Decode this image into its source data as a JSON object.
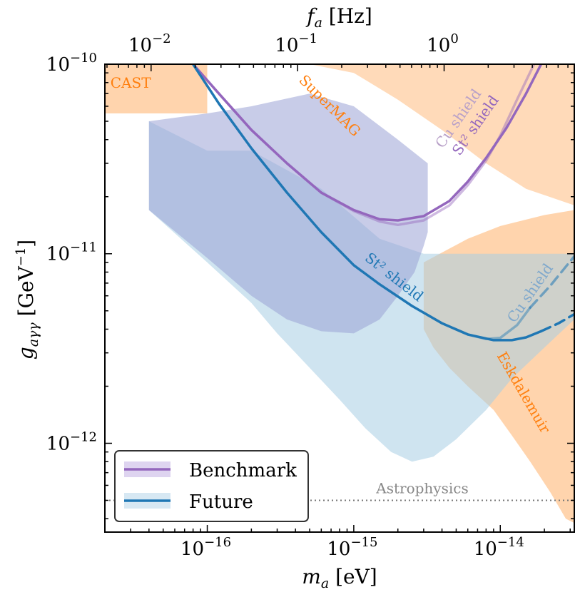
{
  "chart_data": {
    "type": "area",
    "xlabel": "m_a [eV]",
    "ylabel": "g_aγγ [GeV⁻¹]",
    "top_xlabel": "f_a [Hz]",
    "xscale": "log",
    "yscale": "log",
    "xlim": [
      2e-17,
      3.2e-14
    ],
    "ylim": [
      3.4e-13,
      1e-10
    ],
    "x_ticks": [
      {
        "value": 1e-16,
        "base": "10",
        "exp": "−16"
      },
      {
        "value": 1e-15,
        "base": "10",
        "exp": "−15"
      },
      {
        "value": 1e-14,
        "base": "10",
        "exp": "−14"
      }
    ],
    "top_ticks": [
      {
        "value_hz": 0.01,
        "base": "10",
        "exp": "−2"
      },
      {
        "value_hz": 0.1,
        "base": "10",
        "exp": "−1"
      },
      {
        "value_hz": 1,
        "base": "10",
        "exp": "0"
      }
    ],
    "y_ticks": [
      {
        "value": 1e-10,
        "base": "10",
        "exp": "−10"
      },
      {
        "value": 1e-11,
        "base": "10",
        "exp": "−11"
      },
      {
        "value": 1e-12,
        "base": "10",
        "exp": "−12"
      }
    ],
    "regions": [
      {
        "name": "CAST",
        "color": "#ffc28a",
        "opacity": 0.7,
        "points": [
          [
            2e-17,
            1e-10
          ],
          [
            2e-17,
            5.5e-11
          ],
          [
            3.2e-17,
            5.5e-11
          ],
          [
            1e-16,
            5.5e-11
          ],
          [
            1e-16,
            1e-10
          ]
        ]
      },
      {
        "name": "SuperMAG",
        "color": "#ffc28a",
        "opacity": 0.6,
        "points": [
          [
            4e-17,
            1e-10
          ],
          [
            3.2e-14,
            1e-10
          ],
          [
            3.2e-14,
            1.8e-11
          ],
          [
            1.5e-14,
            2.2e-11
          ],
          [
            8e-15,
            3e-11
          ],
          [
            4e-15,
            4.5e-11
          ],
          [
            2e-15,
            6.5e-11
          ],
          [
            1e-15,
            9e-11
          ],
          [
            5e-16,
            1e-10
          ]
        ]
      },
      {
        "name": "Eskdalemuir",
        "color": "#ffc28a",
        "opacity": 0.7,
        "points": [
          [
            3e-15,
            9e-12
          ],
          [
            6e-15,
            1.2e-11
          ],
          [
            1e-14,
            1.4e-11
          ],
          [
            2e-14,
            1.6e-11
          ],
          [
            3.2e-14,
            1.7e-11
          ],
          [
            3.2e-14,
            3.8e-13
          ],
          [
            2.8e-14,
            4e-13
          ],
          [
            2.2e-14,
            5.5e-13
          ],
          [
            1.6e-14,
            8e-13
          ],
          [
            1.2e-14,
            1.1e-12
          ],
          [
            9e-15,
            1.5e-12
          ],
          [
            6e-15,
            2e-12
          ],
          [
            4.5e-15,
            2.5e-12
          ],
          [
            3.5e-15,
            3.2e-12
          ],
          [
            3e-15,
            4e-12
          ]
        ]
      },
      {
        "name": "Future",
        "color": "#a8cde3",
        "opacity": 0.55,
        "points": [
          [
            4e-17,
            1.7e-11
          ],
          [
            1e-16,
            9e-12
          ],
          [
            2e-16,
            5.5e-12
          ],
          [
            3e-16,
            3.8e-12
          ],
          [
            5e-16,
            2.5e-12
          ],
          [
            8e-16,
            1.7e-12
          ],
          [
            1.2e-15,
            1.2e-12
          ],
          [
            1.8e-15,
            9e-13
          ],
          [
            2.5e-15,
            8e-13
          ],
          [
            3.5e-15,
            8.5e-13
          ],
          [
            5e-15,
            1.05e-12
          ],
          [
            8e-15,
            1.5e-12
          ],
          [
            1.2e-14,
            2.2e-12
          ],
          [
            2e-14,
            3.2e-12
          ],
          [
            3.2e-14,
            4.5e-12
          ],
          [
            3.2e-14,
            1e-11
          ],
          [
            3e-15,
            1e-11
          ],
          [
            1.5e-15,
            1.2e-11
          ],
          [
            6e-16,
            2.2e-11
          ],
          [
            2e-16,
            3.5e-11
          ],
          [
            1e-16,
            3.5e-11
          ],
          [
            4e-17,
            5e-11
          ]
        ]
      },
      {
        "name": "Benchmark",
        "color": "#9aa2d6",
        "opacity": 0.55,
        "points": [
          [
            4e-17,
            5e-11
          ],
          [
            4e-17,
            1.7e-11
          ],
          [
            1e-16,
            9.5e-12
          ],
          [
            2e-16,
            6e-12
          ],
          [
            3.5e-16,
            4.5e-12
          ],
          [
            6e-16,
            3.9e-12
          ],
          [
            1e-15,
            3.8e-12
          ],
          [
            1.5e-15,
            4.5e-12
          ],
          [
            2e-15,
            6e-12
          ],
          [
            2.6e-15,
            8e-12
          ],
          [
            3e-15,
            1.1e-11
          ],
          [
            3.2e-15,
            1.3e-11
          ],
          [
            3.2e-15,
            3e-11
          ],
          [
            2e-15,
            4e-11
          ],
          [
            1e-15,
            6e-11
          ],
          [
            5e-16,
            7e-11
          ],
          [
            2e-16,
            6e-11
          ],
          [
            1e-16,
            5.5e-11
          ]
        ]
      }
    ],
    "series": [
      {
        "name": "Benchmark",
        "color": "#9467bd",
        "width": 3.5,
        "opacity": 1,
        "x": [
          8e-17,
          1.2e-16,
          2e-16,
          3.5e-16,
          6e-16,
          1e-15,
          1.5e-15,
          2e-15,
          3e-15,
          4.5e-15,
          6e-15,
          8e-15,
          1.1e-14,
          1.5e-14,
          1.9e-14
        ],
        "y": [
          1e-10,
          7e-11,
          4.5e-11,
          3e-11,
          2.1e-11,
          1.7e-11,
          1.52e-11,
          1.5e-11,
          1.58e-11,
          1.9e-11,
          2.4e-11,
          3.2e-11,
          4.6e-11,
          7e-11,
          1e-10
        ]
      },
      {
        "name": "Benchmark Cu shield",
        "color": "#9467bd",
        "width": 3.5,
        "opacity": 0.45,
        "x": [
          8e-17,
          1.2e-16,
          2e-16,
          3.5e-16,
          6e-16,
          1e-15,
          1.5e-15,
          2e-15,
          3e-15,
          4.5e-15,
          6e-15,
          8e-15,
          1e-14,
          1.3e-14,
          1.7e-14
        ],
        "y": [
          1e-10,
          7e-11,
          4.5e-11,
          3e-11,
          2.1e-11,
          1.68e-11,
          1.48e-11,
          1.42e-11,
          1.5e-11,
          1.8e-11,
          2.3e-11,
          3.1e-11,
          4.2e-11,
          6.5e-11,
          1e-10
        ]
      },
      {
        "name": "Future",
        "color": "#1f77b4",
        "width": 3.5,
        "opacity": 1,
        "x": [
          8e-17,
          1.2e-16,
          2e-16,
          3.5e-16,
          6e-16,
          1e-15,
          1.5e-15,
          2.5e-15,
          4e-15,
          6e-15,
          9e-15,
          1.2e-14,
          1.5e-14,
          1.9e-14
        ],
        "y": [
          1e-10,
          6.2e-11,
          3.6e-11,
          2.1e-11,
          1.3e-11,
          8.7e-12,
          6.9e-12,
          5.3e-12,
          4.3e-12,
          3.75e-12,
          3.5e-12,
          3.5e-12,
          3.62e-12,
          3.9e-12
        ]
      },
      {
        "name": "Future Cu shield",
        "color": "#1f77b4",
        "width": 3.5,
        "opacity": 0.45,
        "x": [
          4e-15,
          6e-15,
          8e-15,
          1e-14,
          1.3e-14,
          1.6e-14
        ],
        "y": [
          4.3e-12,
          3.75e-12,
          3.55e-12,
          3.6e-12,
          4.2e-12,
          5.2e-12
        ]
      }
    ],
    "dashed_series": [
      {
        "name": "Future extension",
        "color": "#1f77b4",
        "width": 3.5,
        "opacity": 1,
        "x": [
          1.9e-14,
          2.5e-14,
          3.2e-14
        ],
        "y": [
          3.9e-12,
          4.3e-12,
          4.8e-12
        ]
      },
      {
        "name": "Future Cu shield extension",
        "color": "#1f77b4",
        "width": 3.5,
        "opacity": 0.55,
        "x": [
          1.6e-14,
          2.2e-14,
          3.2e-14
        ],
        "y": [
          5.2e-12,
          6.8e-12,
          9.7e-12
        ]
      }
    ],
    "astrophysics": {
      "label": "Astrophysics",
      "value": 5e-13,
      "color": "#777777"
    },
    "annotations": [
      {
        "text": "CAST",
        "x": 3e-17,
        "y": 7.5e-11,
        "color": "#ff7f0e",
        "rotate": 0
      },
      {
        "text": "SuperMAG",
        "x": 6.5e-16,
        "y": 5.8e-11,
        "color": "#ff7f0e",
        "rotate": 45
      },
      {
        "text": "Eskdalemuir",
        "x": 1.35e-14,
        "y": 1.8e-12,
        "color": "#ff7f0e",
        "rotate": 60
      },
      {
        "text": "Cu shield",
        "x": 5.5e-15,
        "y": 5e-11,
        "color": "#b8a0c8",
        "rotate": -55
      },
      {
        "text": "St² shield",
        "x": 7.2e-15,
        "y": 4.6e-11,
        "color": "#9467bd",
        "rotate": -55
      },
      {
        "text": "St² shield",
        "x": 1.8e-15,
        "y": 7.2e-12,
        "color": "#1f77b4",
        "rotate": 38
      },
      {
        "text": "Cu shield",
        "x": 1.7e-14,
        "y": 6e-12,
        "color": "#7fa8cc",
        "rotate": -55
      }
    ],
    "legend": {
      "placement": "lower-left",
      "items": [
        {
          "label": "Benchmark",
          "line_color": "#9467bd",
          "patch_color": "#c8b8e6"
        },
        {
          "label": "Future",
          "line_color": "#1f77b4",
          "patch_color": "#cde2f0"
        }
      ]
    }
  }
}
